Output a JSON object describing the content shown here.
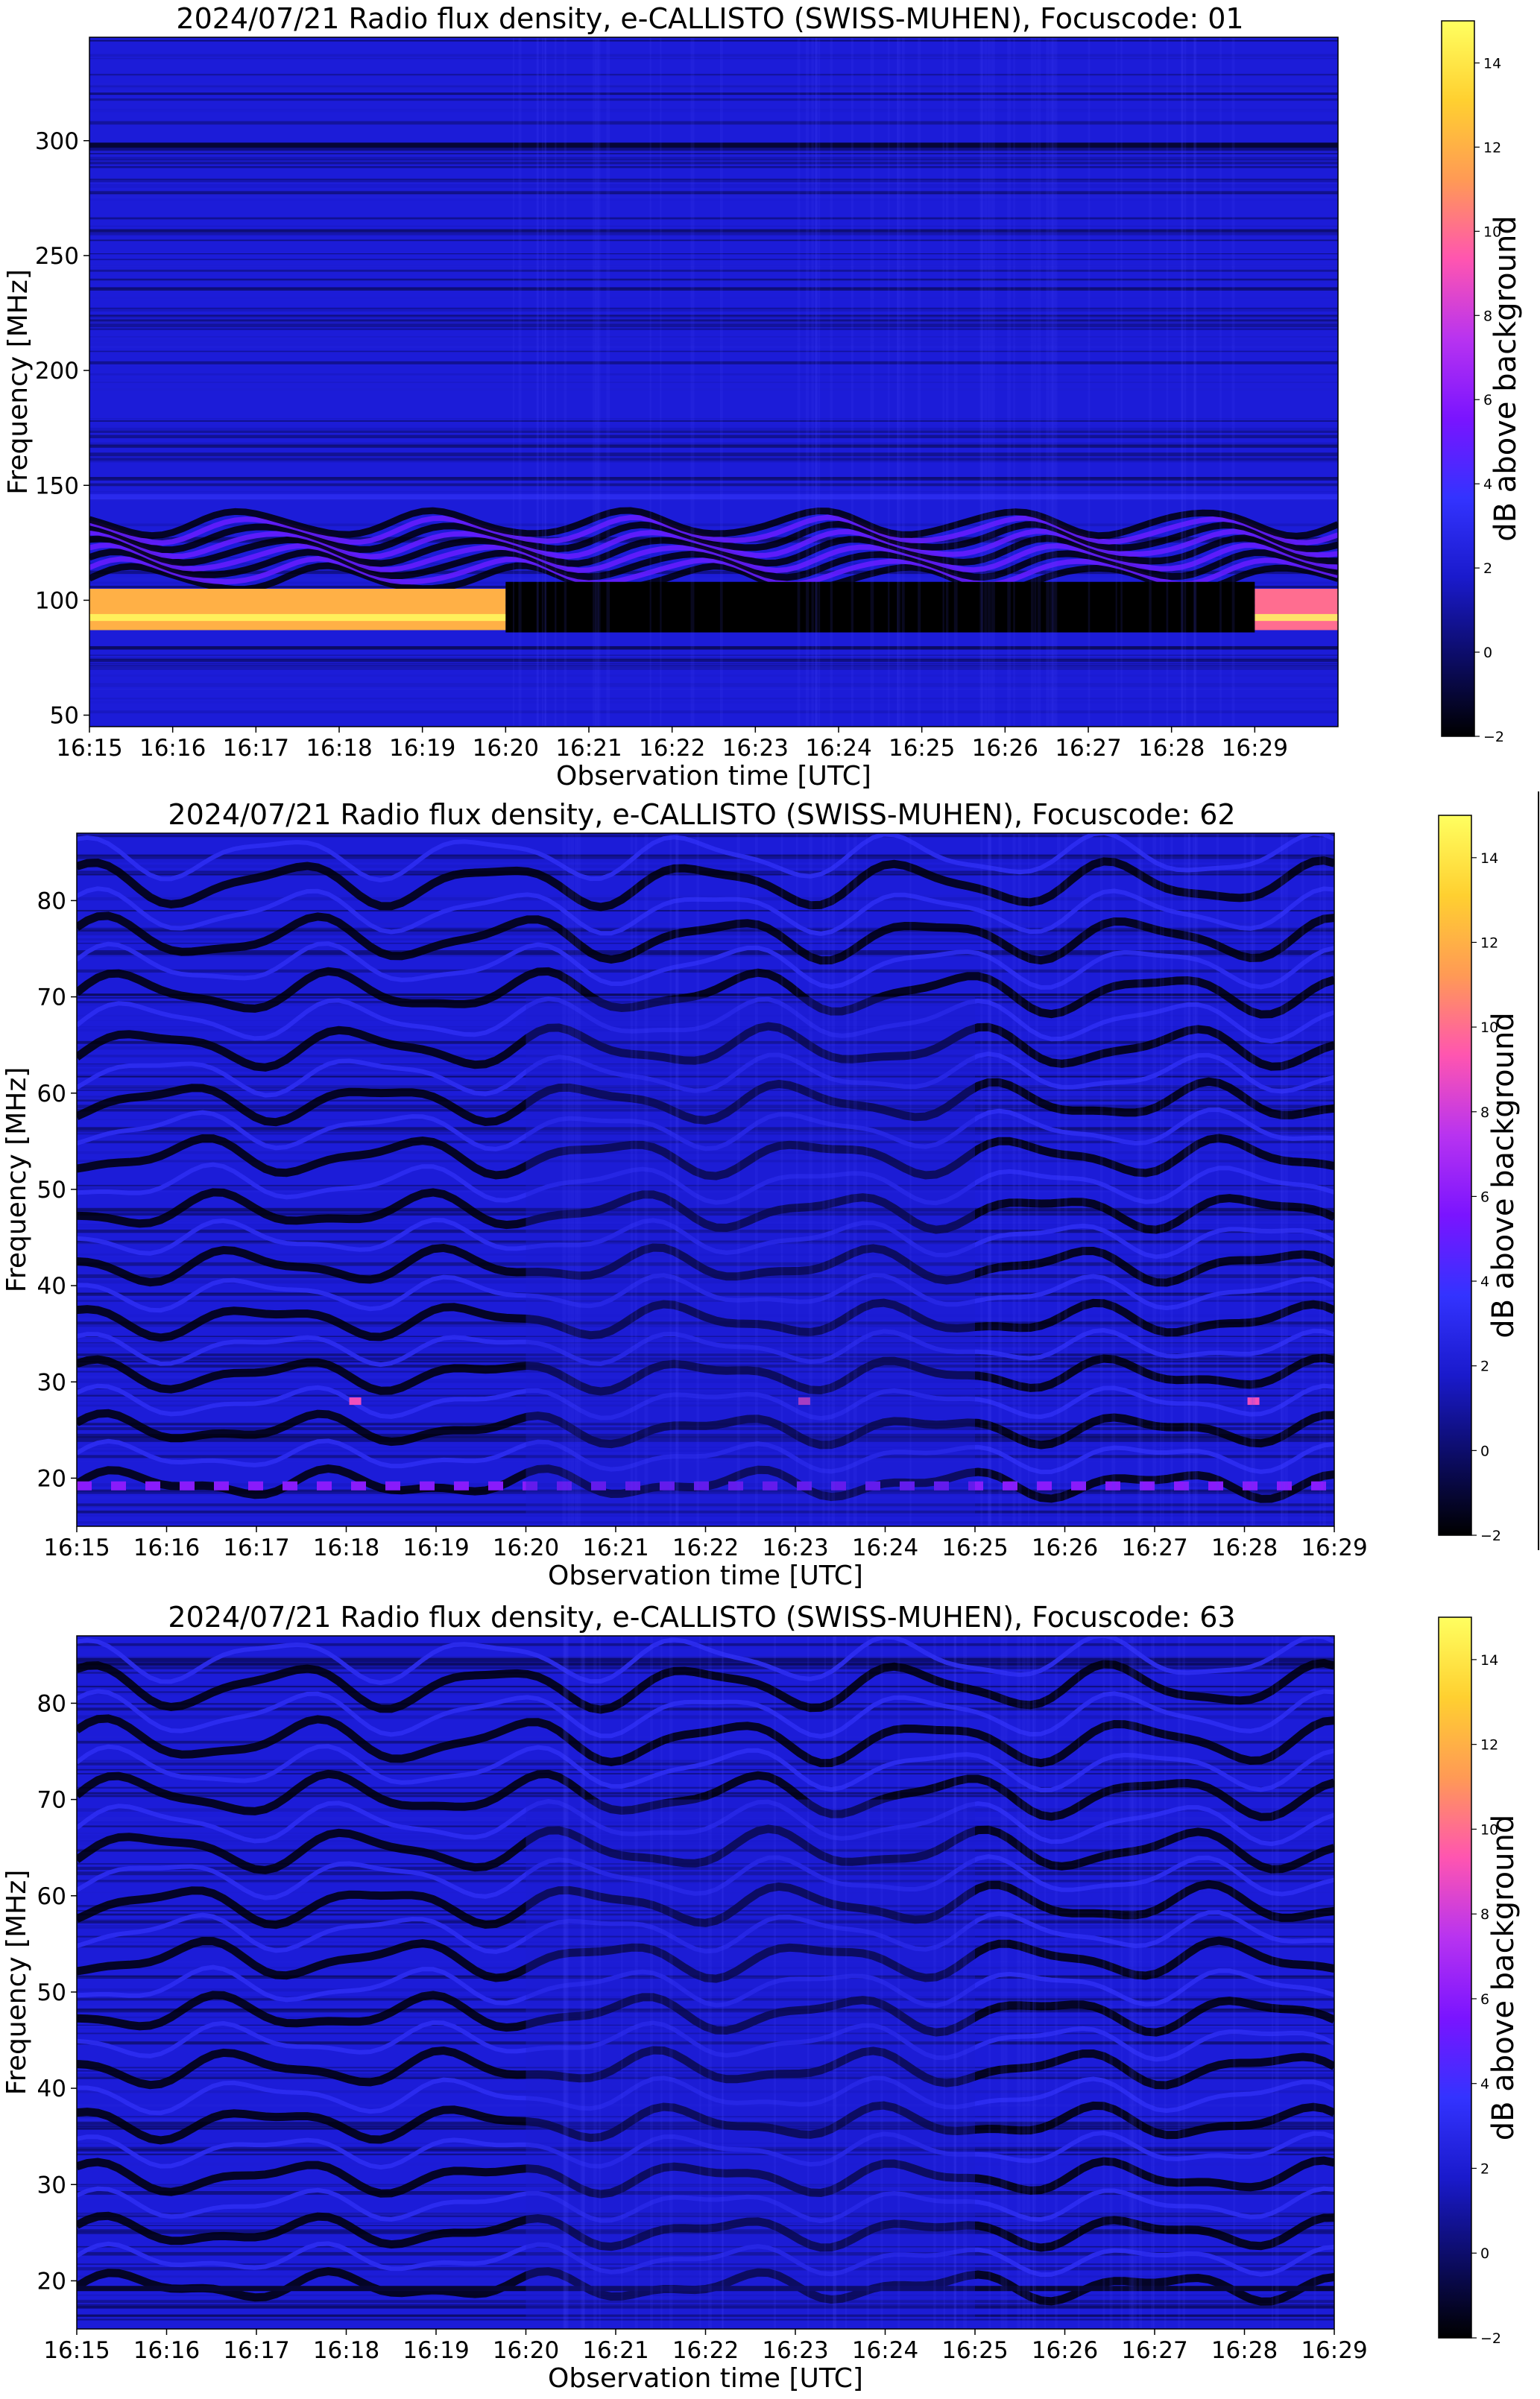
{
  "figure": {
    "colormap": "gnuplot2",
    "colormap_stops": [
      "#000000",
      "#0c0c66",
      "#1a1acc",
      "#3333ff",
      "#7a14ff",
      "#b833f0",
      "#ff55b0",
      "#ff9a55",
      "#ffd030",
      "#ffff60"
    ],
    "background_level_color": "#1c1cd8"
  },
  "chart_data": [
    {
      "type": "heatmap",
      "title": "2024/07/21  Radio flux density, e-CALLISTO (SWISS-MUHEN), Focuscode: 01",
      "xlabel": "Observation time [UTC]",
      "ylabel": "Frequency [MHz]",
      "x_ticks": [
        "16:15",
        "16:16",
        "16:17",
        "16:18",
        "16:19",
        "16:20",
        "16:21",
        "16:22",
        "16:23",
        "16:24",
        "16:25",
        "16:26",
        "16:27",
        "16:28",
        "16:29"
      ],
      "xlim_minutes": [
        0,
        15
      ],
      "y_ticks": [
        50,
        100,
        150,
        200,
        250,
        300
      ],
      "ylim": [
        45,
        345
      ],
      "colorbar": {
        "label": "dB above background",
        "ticks": [
          -2,
          0,
          2,
          4,
          6,
          8,
          10,
          12,
          14
        ],
        "range": [
          -2,
          15
        ]
      },
      "features": [
        {
          "name": "strong band",
          "freq_range": [
            87,
            105
          ],
          "time_range": [
            "16:15",
            "16:20"
          ],
          "level_db": 12
        },
        {
          "name": "strong band",
          "freq_range": [
            87,
            105
          ],
          "time_range": [
            "16:29",
            "16:30"
          ],
          "level_db": 10
        },
        {
          "name": "blanked band",
          "freq_range": [
            86,
            108
          ],
          "time_range": [
            "16:20",
            "16:29"
          ],
          "level_db": -2
        },
        {
          "name": "oscillating stripes",
          "freq_range": [
            108,
            135
          ],
          "level_db": 5
        },
        {
          "name": "interference line",
          "freq": 145,
          "level_db": 3
        },
        {
          "name": "interference line",
          "freq": 298,
          "level_db": -1
        }
      ]
    },
    {
      "type": "heatmap",
      "title": "2024/07/21  Radio flux density, e-CALLISTO (SWISS-MUHEN), Focuscode: 62",
      "xlabel": "Observation time [UTC]",
      "ylabel": "Frequency [MHz]",
      "x_ticks": [
        "16:15",
        "16:16",
        "16:17",
        "16:18",
        "16:19",
        "16:20",
        "16:21",
        "16:22",
        "16:23",
        "16:24",
        "16:25",
        "16:26",
        "16:27",
        "16:28",
        "16:29"
      ],
      "xlim_minutes": [
        0,
        14
      ],
      "y_ticks": [
        20,
        30,
        40,
        50,
        60,
        70,
        80
      ],
      "ylim": [
        15,
        87
      ],
      "colorbar": {
        "label": "dB above background",
        "ticks": [
          -2,
          0,
          2,
          4,
          6,
          8,
          10,
          12,
          14
        ],
        "range": [
          -2,
          15
        ]
      },
      "features": [
        {
          "name": "dashed interference line",
          "freq": 19.2,
          "level_db": 6
        },
        {
          "name": "hot pixel",
          "freq": 28,
          "time": "16:18.1",
          "level_db": 9
        },
        {
          "name": "hot pixel",
          "freq": 28,
          "time": "16:23.1",
          "level_db": 9
        },
        {
          "name": "hot pixel",
          "freq": 28,
          "time": "16:28.1",
          "level_db": 9
        },
        {
          "name": "enhanced emission",
          "freq_range": [
            16,
            70
          ],
          "time_range": [
            "16:20",
            "16:25"
          ],
          "level_db": 2
        }
      ]
    },
    {
      "type": "heatmap",
      "title": "2024/07/21  Radio flux density, e-CALLISTO (SWISS-MUHEN), Focuscode: 63",
      "xlabel": "Observation time [UTC]",
      "ylabel": "Frequency [MHz]",
      "x_ticks": [
        "16:15",
        "16:16",
        "16:17",
        "16:18",
        "16:19",
        "16:20",
        "16:21",
        "16:22",
        "16:23",
        "16:24",
        "16:25",
        "16:26",
        "16:27",
        "16:28",
        "16:29"
      ],
      "xlim_minutes": [
        0,
        14
      ],
      "y_ticks": [
        20,
        30,
        40,
        50,
        60,
        70,
        80
      ],
      "ylim": [
        15,
        87
      ],
      "colorbar": {
        "label": "dB above background",
        "ticks": [
          -2,
          0,
          2,
          4,
          6,
          8,
          10,
          12,
          14
        ],
        "range": [
          -2,
          15
        ]
      },
      "features": [
        {
          "name": "dark interference line",
          "freq": 19.2,
          "level_db": -1
        },
        {
          "name": "enhanced emission",
          "freq_range": [
            16,
            70
          ],
          "time_range": [
            "16:20",
            "16:25"
          ],
          "level_db": 2
        }
      ]
    }
  ]
}
